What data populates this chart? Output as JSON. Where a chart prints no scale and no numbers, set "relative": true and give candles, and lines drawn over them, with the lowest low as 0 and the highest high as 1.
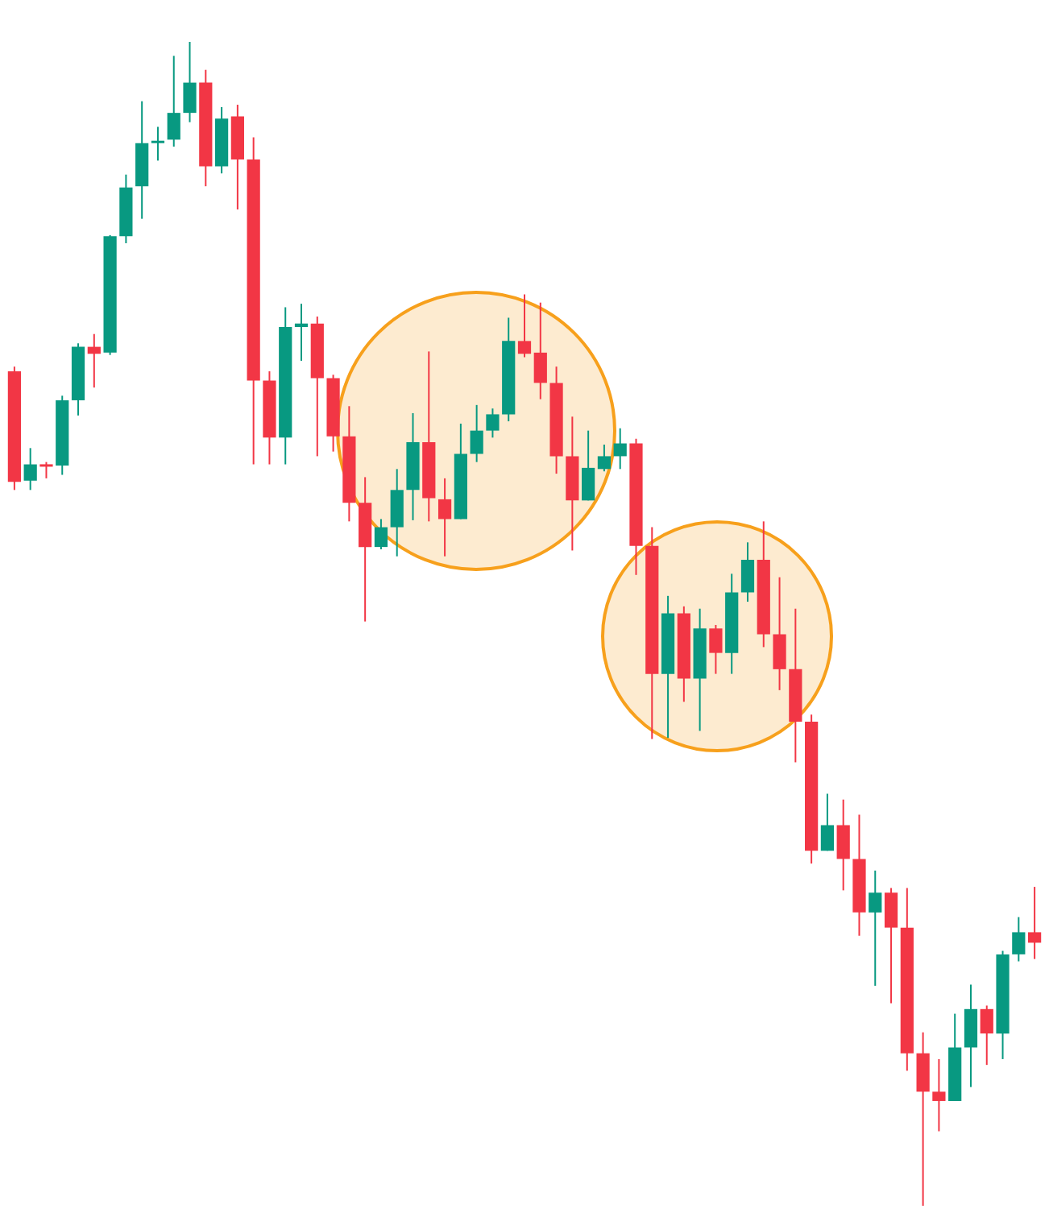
{
  "chart_data": {
    "type": "candlestick",
    "relative": true,
    "tick_labels": false,
    "categories": [
      null,
      null,
      null,
      null,
      null,
      null,
      null,
      null,
      null,
      null,
      null,
      null,
      null,
      null,
      null,
      null,
      null,
      null,
      null,
      null,
      null,
      null,
      null,
      null,
      null,
      null,
      null,
      null,
      null,
      null,
      null,
      null,
      null,
      null,
      null,
      null,
      null,
      null,
      null,
      null,
      null,
      null,
      null,
      null,
      null,
      null,
      null,
      null,
      null,
      null,
      null,
      null,
      null,
      null,
      null,
      null,
      null,
      null,
      null,
      null,
      null,
      null,
      null,
      null,
      null
    ],
    "ohlc": [
      [
        0.717,
        0.721,
        0.615,
        0.622
      ],
      [
        0.623,
        0.651,
        0.615,
        0.637
      ],
      [
        0.637,
        0.639,
        0.625,
        0.635
      ],
      [
        0.636,
        0.696,
        0.628,
        0.692
      ],
      [
        0.692,
        0.741,
        0.679,
        0.738
      ],
      [
        0.738,
        0.749,
        0.703,
        0.732
      ],
      [
        0.733,
        0.834,
        0.731,
        0.833
      ],
      [
        0.833,
        0.886,
        0.827,
        0.875
      ],
      [
        0.876,
        0.949,
        0.848,
        0.913
      ],
      [
        0.913,
        0.927,
        0.898,
        0.915
      ],
      [
        0.916,
        0.988,
        0.91,
        0.939
      ],
      [
        0.939,
        1.0,
        0.931,
        0.965
      ],
      [
        0.965,
        0.976,
        0.876,
        0.893
      ],
      [
        0.893,
        0.944,
        0.887,
        0.934
      ],
      [
        0.936,
        0.946,
        0.856,
        0.899
      ],
      [
        0.899,
        0.918,
        0.637,
        0.709
      ],
      [
        0.709,
        0.717,
        0.637,
        0.66
      ],
      [
        0.66,
        0.772,
        0.637,
        0.755
      ],
      [
        0.755,
        0.775,
        0.726,
        0.758
      ],
      [
        0.758,
        0.764,
        0.644,
        0.711
      ],
      [
        0.711,
        0.714,
        0.648,
        0.661
      ],
      [
        0.661,
        0.687,
        0.588,
        0.604
      ],
      [
        0.604,
        0.626,
        0.502,
        0.566
      ],
      [
        0.566,
        0.59,
        0.564,
        0.583
      ],
      [
        0.583,
        0.633,
        0.558,
        0.615
      ],
      [
        0.615,
        0.681,
        0.589,
        0.656
      ],
      [
        0.656,
        0.734,
        0.588,
        0.608
      ],
      [
        0.607,
        0.625,
        0.558,
        0.59
      ],
      [
        0.59,
        0.672,
        0.59,
        0.646
      ],
      [
        0.646,
        0.688,
        0.639,
        0.666
      ],
      [
        0.666,
        0.685,
        0.66,
        0.68
      ],
      [
        0.68,
        0.763,
        0.674,
        0.743
      ],
      [
        0.743,
        0.783,
        0.729,
        0.732
      ],
      [
        0.733,
        0.776,
        0.693,
        0.707
      ],
      [
        0.707,
        0.721,
        0.629,
        0.644
      ],
      [
        0.644,
        0.678,
        0.563,
        0.606
      ],
      [
        0.606,
        0.666,
        0.606,
        0.634
      ],
      [
        0.633,
        0.654,
        0.631,
        0.644
      ],
      [
        0.644,
        0.668,
        0.633,
        0.655
      ],
      [
        0.655,
        0.659,
        0.542,
        0.567
      ],
      [
        0.567,
        0.583,
        0.401,
        0.457
      ],
      [
        0.457,
        0.524,
        0.402,
        0.509
      ],
      [
        0.509,
        0.515,
        0.433,
        0.453
      ],
      [
        0.453,
        0.513,
        0.408,
        0.496
      ],
      [
        0.496,
        0.499,
        0.457,
        0.475
      ],
      [
        0.475,
        0.543,
        0.457,
        0.527
      ],
      [
        0.527,
        0.57,
        0.519,
        0.555
      ],
      [
        0.555,
        0.588,
        0.48,
        0.491
      ],
      [
        0.491,
        0.54,
        0.443,
        0.461
      ],
      [
        0.461,
        0.513,
        0.381,
        0.416
      ],
      [
        0.416,
        0.422,
        0.294,
        0.305
      ],
      [
        0.305,
        0.354,
        0.305,
        0.327
      ],
      [
        0.327,
        0.349,
        0.271,
        0.298
      ],
      [
        0.298,
        0.336,
        0.232,
        0.252
      ],
      [
        0.252,
        0.288,
        0.189,
        0.269
      ],
      [
        0.269,
        0.273,
        0.174,
        0.239
      ],
      [
        0.239,
        0.273,
        0.116,
        0.131
      ],
      [
        0.131,
        0.149,
        0.0,
        0.098
      ],
      [
        0.098,
        0.126,
        0.064,
        0.09
      ],
      [
        0.09,
        0.165,
        0.09,
        0.136
      ],
      [
        0.136,
        0.19,
        0.102,
        0.169
      ],
      [
        0.169,
        0.172,
        0.121,
        0.148
      ],
      [
        0.148,
        0.219,
        0.126,
        0.216
      ],
      [
        0.216,
        0.248,
        0.21,
        0.235
      ],
      [
        0.235,
        0.274,
        0.212,
        0.226
      ]
    ],
    "colors": [
      "#f23645",
      "#089981",
      "#f23645",
      "#089981",
      "#089981",
      "#f23645",
      "#089981",
      "#089981",
      "#089981",
      "#089981",
      "#089981",
      "#089981",
      "#f23645",
      "#089981",
      "#f23645",
      "#f23645",
      "#f23645",
      "#089981",
      "#089981",
      "#f23645",
      "#f23645",
      "#f23645",
      "#f23645",
      "#089981",
      "#089981",
      "#089981",
      "#f23645",
      "#f23645",
      "#089981",
      "#089981",
      "#089981",
      "#089981",
      "#f23645",
      "#f23645",
      "#f23645",
      "#f23645",
      "#089981",
      "#089981",
      "#089981",
      "#f23645",
      "#f23645",
      "#089981",
      "#f23645",
      "#089981",
      "#f23645",
      "#089981",
      "#089981",
      "#f23645",
      "#f23645",
      "#f23645",
      "#f23645",
      "#089981",
      "#f23645",
      "#f23645",
      "#089981",
      "#f23645",
      "#f23645",
      "#f23645",
      "#f23645",
      "#089981",
      "#089981",
      "#f23645",
      "#089981",
      "#089981",
      "#f23645"
    ]
  }
}
